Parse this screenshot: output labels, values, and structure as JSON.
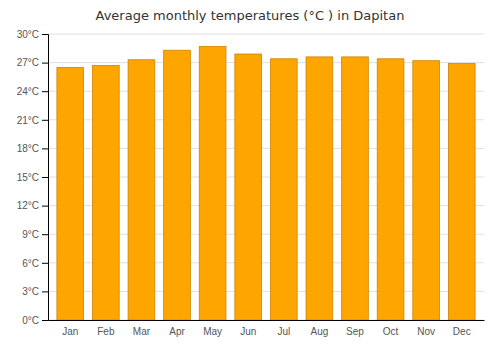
{
  "chart_data": {
    "type": "bar",
    "title": "Average monthly temperatures (°C ) in Dapitan",
    "categories": [
      "Jan",
      "Feb",
      "Mar",
      "Apr",
      "May",
      "Jun",
      "Jul",
      "Aug",
      "Sep",
      "Oct",
      "Nov",
      "Dec"
    ],
    "values": [
      26.5,
      26.7,
      27.3,
      28.3,
      28.7,
      27.9,
      27.4,
      27.6,
      27.6,
      27.4,
      27.2,
      26.9
    ],
    "color": "#FFA500",
    "ylim": [
      0,
      30
    ],
    "yticks": [
      {
        "value": 0,
        "label": "0°C"
      },
      {
        "value": 3,
        "label": "3°C"
      },
      {
        "value": 6,
        "label": "6°C"
      },
      {
        "value": 9,
        "label": "9°C"
      },
      {
        "value": 12,
        "label": "12°C"
      },
      {
        "value": 15,
        "label": "15°C"
      },
      {
        "value": 18,
        "label": "18°C"
      },
      {
        "value": 21,
        "label": "21°C"
      },
      {
        "value": 24,
        "label": "24°C"
      },
      {
        "value": 27,
        "label": "27°C"
      },
      {
        "value": 30,
        "label": "30°C"
      }
    ],
    "grid": true
  }
}
